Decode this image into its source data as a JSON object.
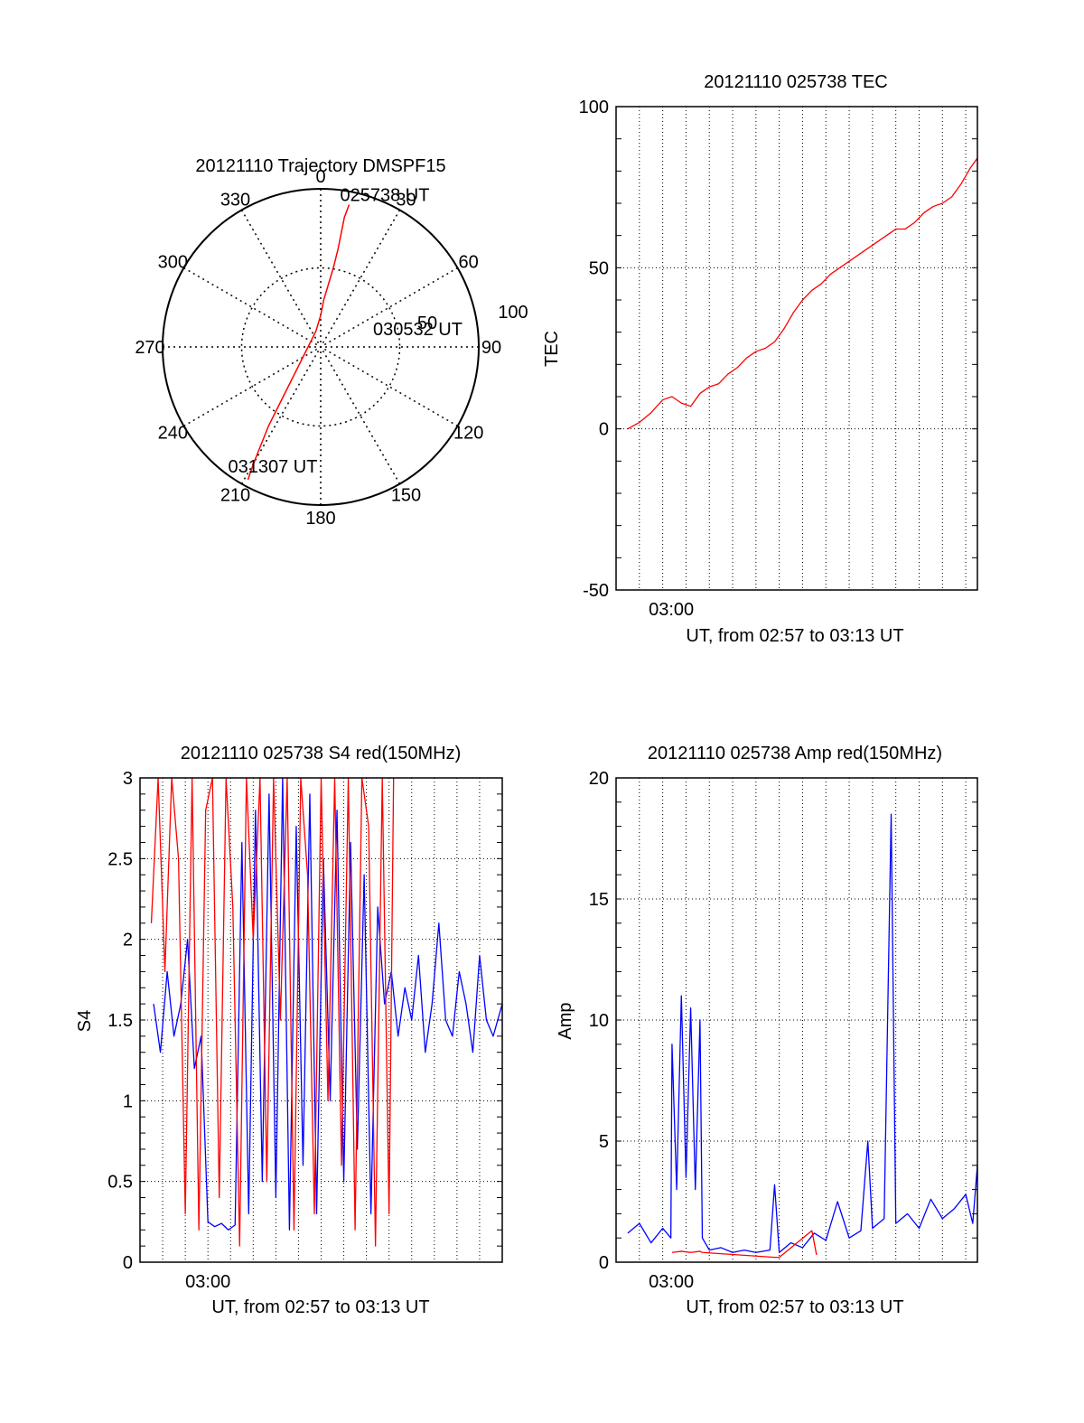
{
  "chart_data": [
    {
      "type": "polar",
      "title": "20121110 Trajectory DMSPF15",
      "angle_labels": [
        "0",
        "30",
        "60",
        "90",
        "120",
        "150",
        "180",
        "210",
        "240",
        "270",
        "300",
        "330"
      ],
      "radius_labels": [
        "50",
        "100"
      ],
      "rmax": 100,
      "grid": true,
      "series": [
        {
          "color": "#ff0000",
          "points": [
            [
              18,
              90
            ],
            [
              15,
              82
            ],
            [
              13,
              72
            ],
            [
              11,
              62
            ],
            [
              8,
              50
            ],
            [
              5,
              40
            ],
            [
              2,
              30
            ],
            [
              0,
              20
            ],
            [
              -3,
              10
            ],
            [
              -8,
              0
            ],
            [
              -13,
              -10
            ],
            [
              -18,
              -20
            ],
            [
              -23,
              -30
            ],
            [
              -28,
              -40
            ],
            [
              -33,
              -50
            ],
            [
              -37,
              -60
            ],
            [
              -41,
              -70
            ],
            [
              -44,
              -78
            ],
            [
              -46,
              -84
            ]
          ]
        }
      ],
      "annotations": [
        {
          "text": "025738 UT",
          "point": [
            18,
            90
          ]
        },
        {
          "text": "030532 UT",
          "point": [
            0,
            20
          ]
        },
        {
          "text": "031307 UT",
          "point": [
            -46,
            -84
          ]
        }
      ]
    },
    {
      "type": "line",
      "title": "20121110 025738 TEC",
      "xlabel": "UT, from 02:57 to 03:13 UT",
      "ylabel": "TEC",
      "xlim": [
        0,
        15.5
      ],
      "ylim": [
        -50,
        100
      ],
      "yticks": [
        "100",
        "50",
        "0",
        "-50"
      ],
      "xticks": [
        {
          "value": 2.37,
          "label": "03:00"
        }
      ],
      "grid": true,
      "series": [
        {
          "color": "#ff0000",
          "x": [
            0.5,
            1,
            1.5,
            2,
            2.4,
            2.8,
            3.2,
            3.6,
            4,
            4.4,
            4.8,
            5.2,
            5.6,
            6,
            6.4,
            6.8,
            7.2,
            7.6,
            8,
            8.4,
            8.8,
            9.2,
            9.6,
            10,
            10.4,
            10.8,
            11.2,
            11.6,
            12,
            12.4,
            12.8,
            13.2,
            13.6,
            14,
            14.4,
            14.8,
            15.2,
            15.5
          ],
          "values": [
            0,
            2,
            5,
            9,
            10,
            8,
            7,
            11,
            13,
            14,
            17,
            19,
            22,
            24,
            25,
            27,
            31,
            36,
            40,
            43,
            45,
            48,
            50,
            52,
            54,
            56,
            58,
            60,
            62,
            62,
            64,
            67,
            69,
            70,
            72,
            76,
            81,
            84
          ]
        }
      ]
    },
    {
      "type": "line",
      "title": "20121110 025738 S4 red(150MHz)",
      "xlabel": "UT, from 02:57 to 03:13 UT",
      "ylabel": "S4",
      "xlim": [
        0,
        16
      ],
      "ylim": [
        0,
        3
      ],
      "yticks": [
        "3",
        "2.5",
        "2",
        "1.5",
        "1",
        "0.5",
        "0"
      ],
      "xticks": [
        {
          "value": 3,
          "label": "03:00"
        }
      ],
      "grid": true,
      "series": [
        {
          "color": "#0000ff",
          "x": [
            0.6,
            0.9,
            1.2,
            1.5,
            1.8,
            2.1,
            2.4,
            2.7,
            3.0,
            3.3,
            3.6,
            3.9,
            4.2,
            4.5,
            4.8,
            5.1,
            5.4,
            5.7,
            6.0,
            6.3,
            6.6,
            6.9,
            7.2,
            7.5,
            7.8,
            8.1,
            8.4,
            8.7,
            9.0,
            9.3,
            9.6,
            9.9,
            10.2,
            10.5,
            10.8,
            11.1,
            11.4,
            11.7,
            12.0,
            12.3,
            12.6,
            12.9,
            13.2,
            13.5,
            13.8,
            14.1,
            14.4,
            14.7,
            15.0,
            15.3,
            15.6,
            16.0
          ],
          "values": [
            1.6,
            1.3,
            1.8,
            1.4,
            1.6,
            2.0,
            1.2,
            1.4,
            0.25,
            0.22,
            0.24,
            0.2,
            0.23,
            2.6,
            0.3,
            2.8,
            0.5,
            2.9,
            0.4,
            3.0,
            0.2,
            2.7,
            0.6,
            2.9,
            0.3,
            2.5,
            1.0,
            2.8,
            0.5,
            2.6,
            0.7,
            2.4,
            0.3,
            2.2,
            1.6,
            1.8,
            1.4,
            1.7,
            1.5,
            1.9,
            1.3,
            1.6,
            2.1,
            1.5,
            1.4,
            1.8,
            1.6,
            1.3,
            1.9,
            1.5,
            1.4,
            1.6
          ]
        },
        {
          "color": "#ff0000",
          "x": [
            0.5,
            0.8,
            1.1,
            1.4,
            1.7,
            2.0,
            2.3,
            2.6,
            2.9,
            3.2,
            3.5,
            3.8,
            4.1,
            4.4,
            4.7,
            5.0,
            5.3,
            5.6,
            5.9,
            6.2,
            6.5,
            6.8,
            7.1,
            7.4,
            7.7,
            8.0,
            8.3,
            8.6,
            8.9,
            9.2,
            9.5,
            9.8,
            10.1,
            10.4,
            10.7,
            11.0,
            11.2
          ],
          "values": [
            2.1,
            3.0,
            1.8,
            3.0,
            2.5,
            0.3,
            3.0,
            0.2,
            2.8,
            3.0,
            0.4,
            3.0,
            2.2,
            0.1,
            3.0,
            2.0,
            3.0,
            0.5,
            3.0,
            1.5,
            3.0,
            0.2,
            3.0,
            2.4,
            0.3,
            3.0,
            1.0,
            3.0,
            0.6,
            3.0,
            0.2,
            3.0,
            2.7,
            0.1,
            3.0,
            0.3,
            3.0
          ]
        }
      ]
    },
    {
      "type": "line",
      "title": "20121110 025738 Amp red(150MHz)",
      "xlabel": "UT, from 02:57 to 03:13 UT",
      "ylabel": "Amp",
      "xlim": [
        0,
        15.5
      ],
      "ylim": [
        0,
        20
      ],
      "yticks": [
        "20",
        "15",
        "10",
        "5",
        "0"
      ],
      "xticks": [
        {
          "value": 2.37,
          "label": "03:00"
        }
      ],
      "grid": true,
      "series": [
        {
          "color": "#0000ff",
          "x": [
            0.5,
            1,
            1.5,
            2,
            2.35,
            2.4,
            2.6,
            2.8,
            3,
            3.2,
            3.4,
            3.6,
            3.7,
            4,
            4.5,
            5,
            5.5,
            6,
            6.6,
            6.8,
            7,
            7.5,
            8,
            8.5,
            9,
            9.5,
            10,
            10.5,
            10.8,
            11,
            11.5,
            11.8,
            12,
            12.5,
            13,
            13.5,
            14,
            14.5,
            15,
            15.3,
            15.5
          ],
          "values": [
            1.2,
            1.6,
            0.8,
            1.4,
            1.0,
            9,
            3,
            11,
            3.5,
            10.5,
            3,
            10,
            1.0,
            0.5,
            0.6,
            0.4,
            0.5,
            0.4,
            0.5,
            3.2,
            0.4,
            0.8,
            0.6,
            1.2,
            0.9,
            2.5,
            1.0,
            1.3,
            5.0,
            1.4,
            1.8,
            18.5,
            1.6,
            2.0,
            1.4,
            2.6,
            1.8,
            2.2,
            2.8,
            1.6,
            4.0
          ]
        },
        {
          "color": "#ff0000",
          "x": [
            2.4,
            2.8,
            3.2,
            3.6,
            3.7,
            6.8,
            7,
            8.4,
            8.6
          ],
          "values": [
            0.4,
            0.45,
            0.4,
            0.45,
            0.4,
            0.2,
            0.2,
            1.3,
            0.3
          ]
        }
      ]
    }
  ]
}
